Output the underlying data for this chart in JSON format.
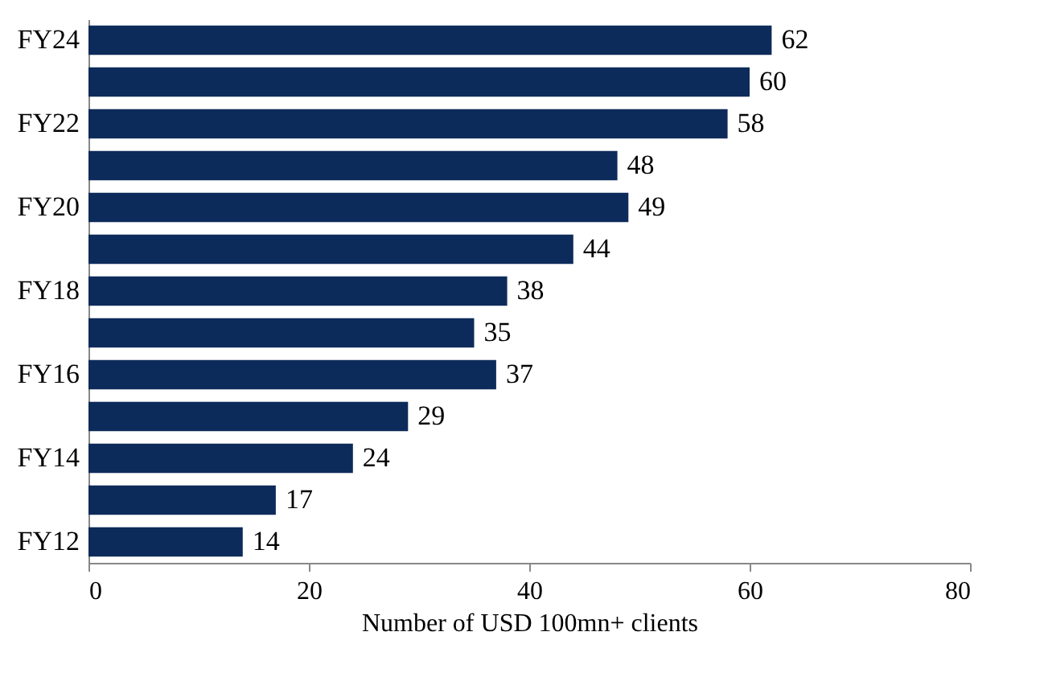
{
  "chart_data": {
    "type": "bar",
    "orientation": "horizontal",
    "xlabel": "Number of USD 100mn+ clients",
    "categories": [
      "FY24",
      null,
      "FY22",
      null,
      "FY20",
      null,
      "FY18",
      null,
      "FY16",
      null,
      "FY14",
      null,
      "FY12"
    ],
    "values": [
      62,
      60,
      58,
      48,
      49,
      44,
      38,
      35,
      37,
      29,
      24,
      17,
      14
    ],
    "color": "#0d2b5a",
    "xlim": [
      0,
      80
    ],
    "xticks": [
      0,
      20,
      40,
      60,
      80
    ],
    "grid": false,
    "data_labels": true
  }
}
